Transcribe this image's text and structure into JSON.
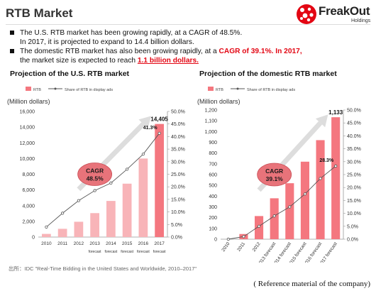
{
  "page": {
    "title": "RTB Market",
    "logo": {
      "name": "FreakOut",
      "sub": "Holdings"
    },
    "source": "出所：IDC \"Real-Time Bidding in the United States and Worldwide, 2010–2017\"",
    "reference": "( Reference material of the company)"
  },
  "bullets": [
    {
      "line1": "The U.S. RTB market has been growing rapidly, at a CAGR of 48.5%.",
      "line2": "In 2017, it is projected to expand to 14.4 billion dollars."
    },
    {
      "line1_pre": "The domestic RTB market has also been growing rapidly, at a ",
      "line1_hl": "CAGR of 39.1%. In 2017,",
      "line2_pre": "the market size is expected to reach ",
      "line2_hl": "1.1 billion dollars."
    }
  ],
  "colors": {
    "bar": "#f4777f",
    "bar_light": "#f8b4b8",
    "line": "#555555",
    "accent": "#e30613",
    "cagr_fill": "#e8737a",
    "arrow": "#dddddd"
  },
  "chart_data": [
    {
      "type": "bar",
      "title": "Projection of the U.S. RTB market",
      "unit_label": "(Million dollars)",
      "legend": {
        "bar": "RTB",
        "line": "Share of RTB in display ads"
      },
      "categories": [
        "2010",
        "2011",
        "2012",
        "2013",
        "2014",
        "2015",
        "2016",
        "2017"
      ],
      "forecast_labels": [
        "forecast",
        "forecast",
        "forecast",
        "forecast",
        "forecast"
      ],
      "values": [
        400,
        1050,
        1950,
        3050,
        4600,
        6800,
        10000,
        14405
      ],
      "highlight_last": true,
      "value_label": "14,405",
      "ylim": [
        0,
        16000
      ],
      "yticks": [
        0,
        2000,
        4000,
        6000,
        8000,
        10000,
        12000,
        14000,
        16000
      ],
      "ytick_labels": [
        "0",
        "2,000",
        "4,000",
        "6,000",
        "8,000",
        "10,000",
        "12,000",
        "14,000",
        "16,000"
      ],
      "share": [
        4.0,
        9.5,
        14.5,
        18.5,
        21.5,
        27.0,
        33.0,
        41.3
      ],
      "share_label": "41.3%",
      "y2lim": [
        0,
        50
      ],
      "y2ticks": [
        0,
        5,
        10,
        15,
        20,
        25,
        30,
        35,
        40,
        45,
        50
      ],
      "y2tick_labels": [
        "0.0%",
        "5.0%",
        "10.0%",
        "15.0%",
        "20.0%",
        "25.0%",
        "30.0%",
        "35.0%",
        "40.0%",
        "45.0%",
        "50.0%"
      ],
      "cagr": {
        "line1": "CAGR",
        "line2": "48.5%"
      },
      "grid": false
    },
    {
      "type": "bar",
      "title": "Projection of the domestic RTB market",
      "unit_label": "(Million dollars)",
      "legend": {
        "bar": "RTB",
        "line": "Share of RTB in display ads"
      },
      "categories": [
        "2010",
        "2011",
        "2012",
        "2013 forecast",
        "2014 forecast",
        "2015 forecast",
        "2016 forecast",
        "2017 forecast"
      ],
      "values": [
        0,
        48,
        215,
        380,
        520,
        720,
        920,
        1133
      ],
      "highlight_last": false,
      "value_label": "1,133",
      "ylim": [
        0,
        1200
      ],
      "yticks": [
        0,
        100,
        200,
        300,
        400,
        500,
        600,
        700,
        800,
        900,
        1000,
        1100,
        1200
      ],
      "ytick_labels": [
        "0",
        "100",
        "200",
        "300",
        "400",
        "500",
        "600",
        "700",
        "800",
        "900",
        "1,000",
        "1,100",
        "1,200"
      ],
      "share": [
        0.0,
        1.0,
        5.0,
        9.0,
        12.5,
        17.5,
        23.5,
        28.3
      ],
      "share_label": "28.3%",
      "y2lim": [
        0,
        50
      ],
      "y2ticks": [
        0,
        5,
        10,
        15,
        20,
        25,
        30,
        35,
        40,
        45,
        50
      ],
      "y2tick_labels": [
        "0.0%",
        "5.0%",
        "10.0%",
        "15.0%",
        "20.0%",
        "25.0%",
        "30.0%",
        "35.0%",
        "40.0%",
        "45.0%",
        "50.0%"
      ],
      "cagr": {
        "line1": "CAGR",
        "line2": "39.1%"
      },
      "grid": false
    }
  ]
}
